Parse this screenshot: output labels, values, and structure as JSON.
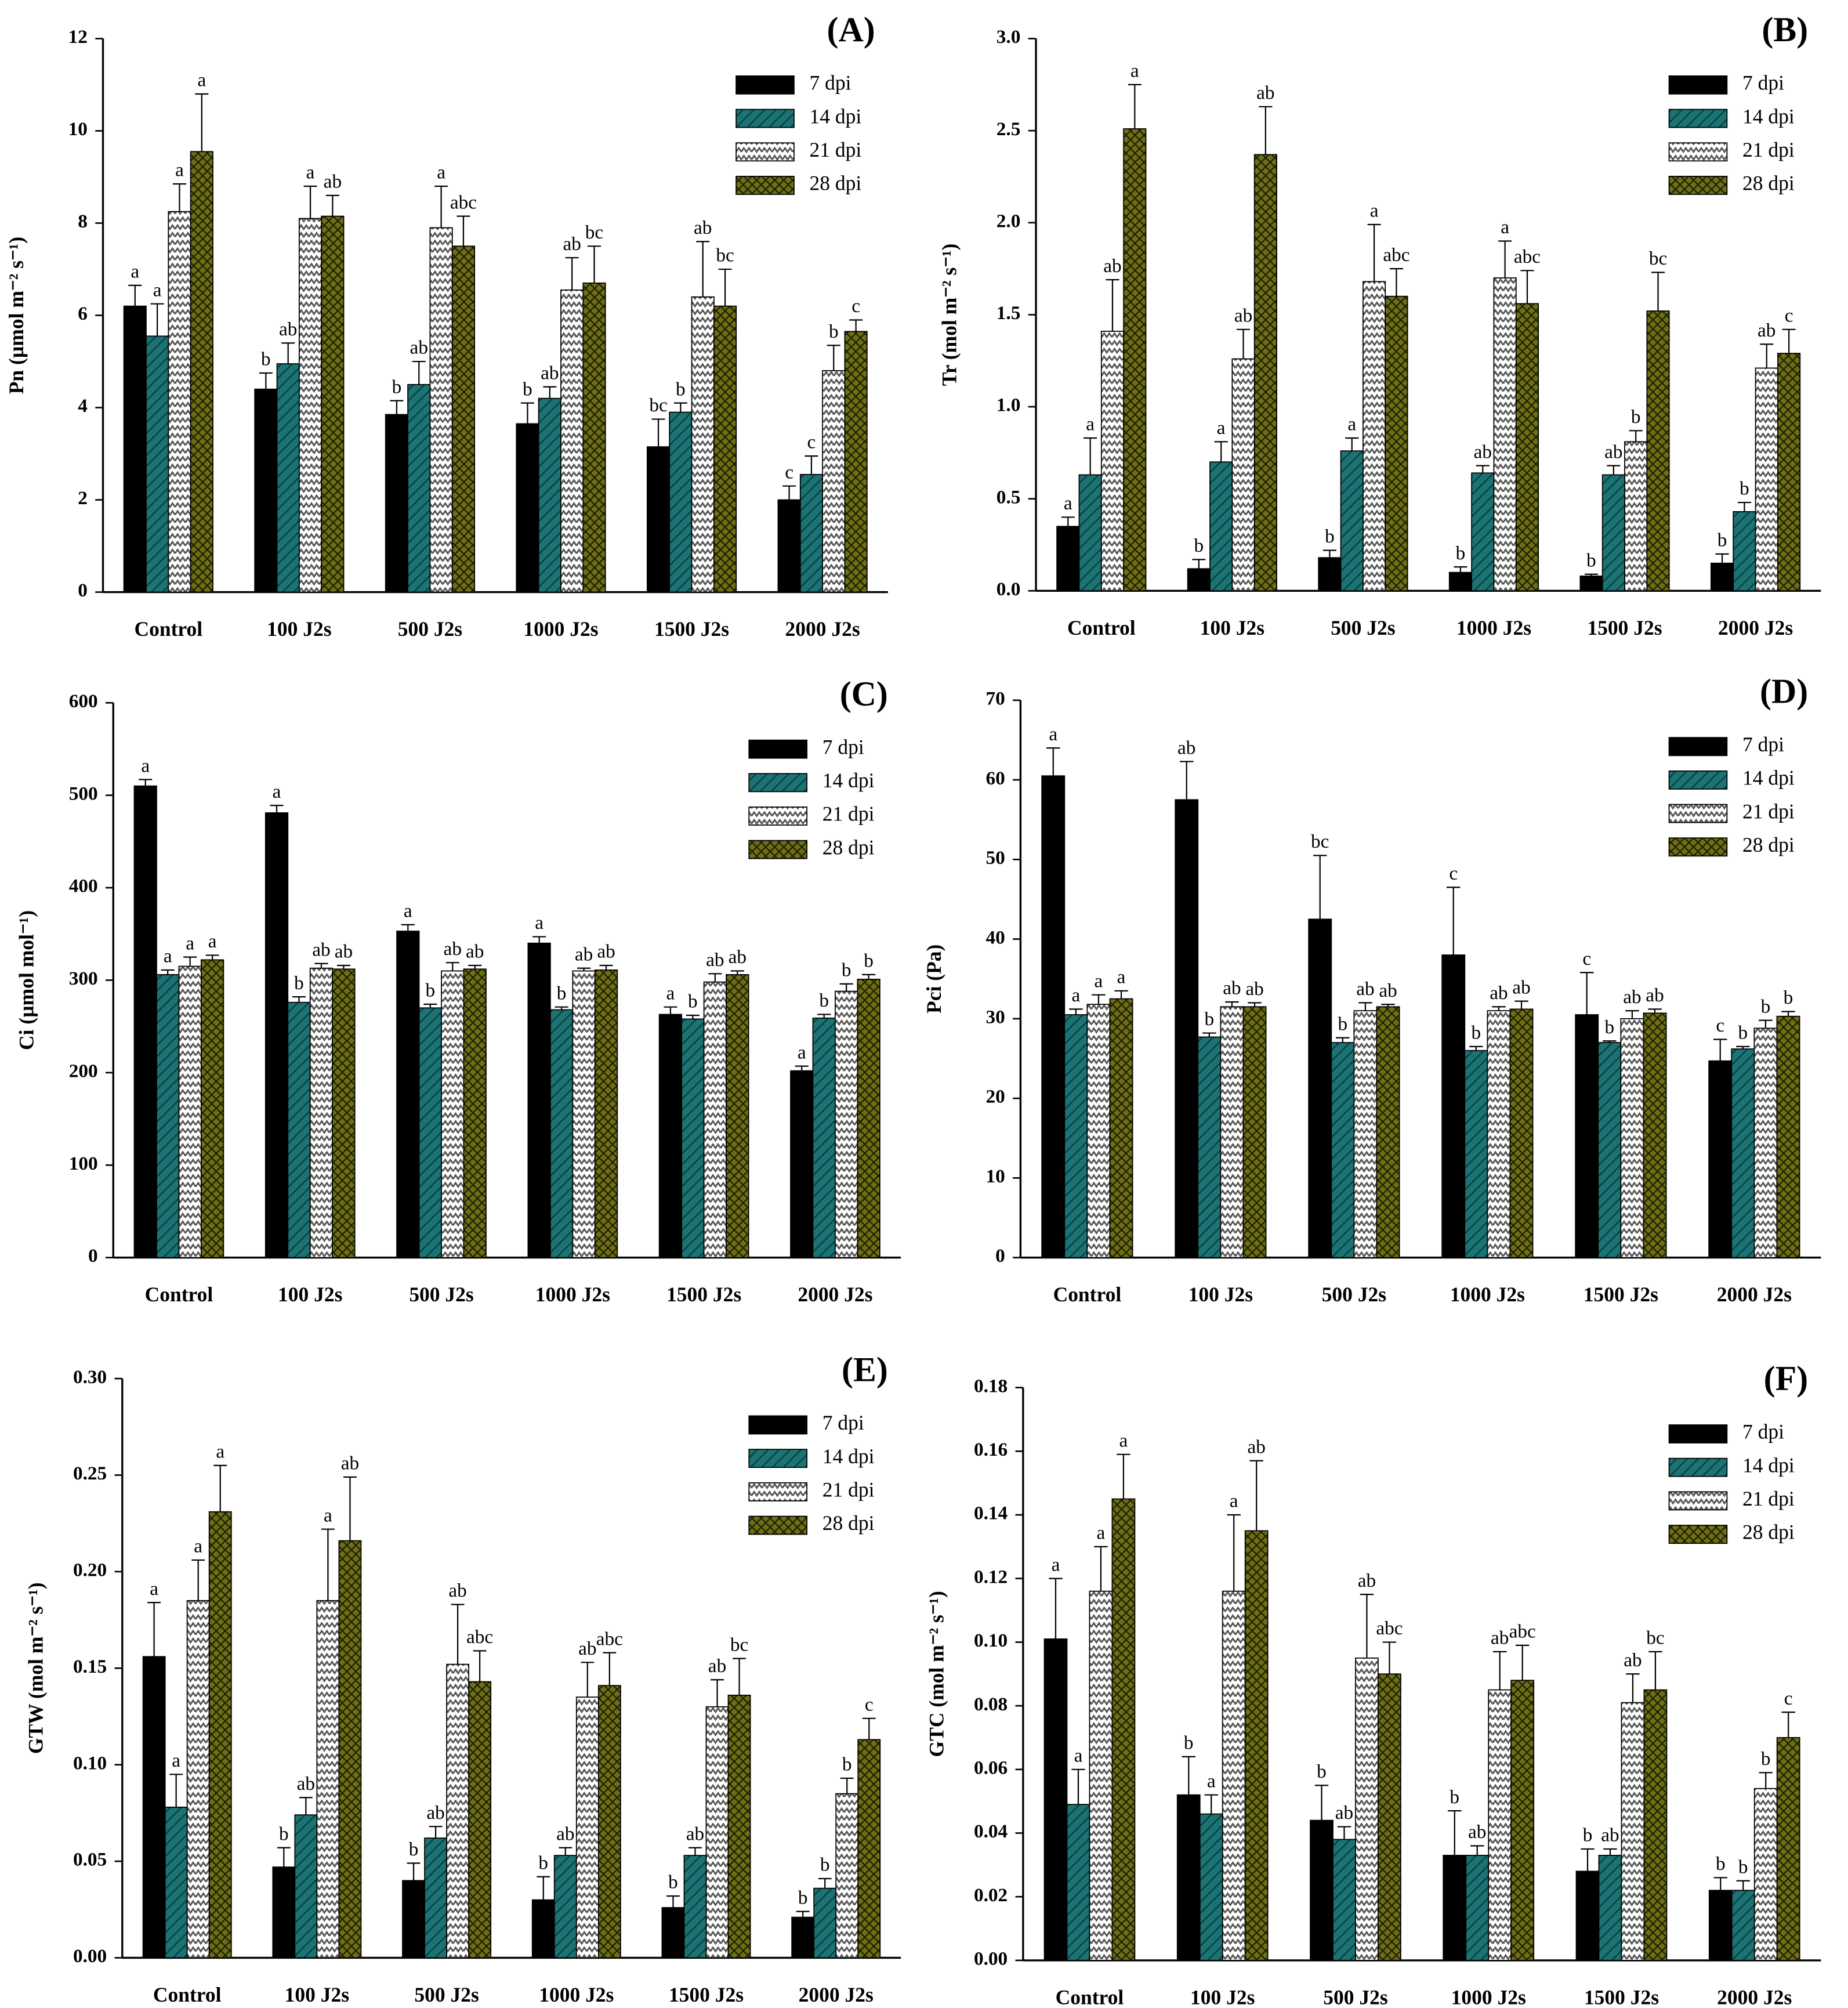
{
  "chart_data": [
    {
      "type": "bar",
      "panel": "(A)",
      "ylabel": "Pn (µmol m⁻² s⁻¹)",
      "categories": [
        "Control",
        "100 J2s",
        "500 J2s",
        "1000 J2s",
        "1500 J2s",
        "2000 J2s"
      ],
      "ylim": [
        0,
        12
      ],
      "yticks": [
        0,
        2,
        4,
        6,
        8,
        10,
        12
      ],
      "series": [
        {
          "name": "7 dpi",
          "color": "#000000",
          "hatch": "solid",
          "values": [
            6.2,
            4.4,
            3.85,
            3.65,
            3.15,
            2.0
          ],
          "errors": [
            0.45,
            0.35,
            0.3,
            0.45,
            0.6,
            0.3
          ],
          "letters": [
            "a",
            "b",
            "b",
            "b",
            "bc",
            "c"
          ]
        },
        {
          "name": "14 dpi",
          "color": "#1b6f6f",
          "hatch": "diagonal",
          "values": [
            5.55,
            4.95,
            4.5,
            4.2,
            3.9,
            2.55
          ],
          "errors": [
            0.7,
            0.45,
            0.5,
            0.25,
            0.2,
            0.4
          ],
          "letters": [
            "a",
            "ab",
            "ab",
            "ab",
            "b",
            "c"
          ]
        },
        {
          "name": "21 dpi",
          "color": "#ffffff",
          "hatch": "zigzag",
          "values": [
            8.25,
            8.1,
            7.9,
            6.55,
            6.4,
            4.8
          ],
          "errors": [
            0.6,
            0.7,
            0.9,
            0.7,
            1.2,
            0.55
          ],
          "letters": [
            "a",
            "a",
            "a",
            "ab",
            "ab",
            "b"
          ]
        },
        {
          "name": "28 dpi",
          "color": "#6e6e14",
          "hatch": "crosshatch",
          "values": [
            9.55,
            8.15,
            7.5,
            6.7,
            6.2,
            5.65
          ],
          "errors": [
            1.25,
            0.45,
            0.65,
            0.8,
            0.8,
            0.25
          ],
          "letters": [
            "a",
            "ab",
            "abc",
            "bc",
            "bc",
            "c"
          ]
        }
      ]
    },
    {
      "type": "bar",
      "panel": "(B)",
      "ylabel": "Tr (mol m⁻² s⁻¹)",
      "categories": [
        "Control",
        "100 J2s",
        "500 J2s",
        "1000 J2s",
        "1500 J2s",
        "2000 J2s"
      ],
      "ylim": [
        0,
        3
      ],
      "yticks": [
        {
          "value": 0,
          "label": "0.0"
        },
        0.5,
        {
          "value": 1,
          "label": "1.0"
        },
        1.5,
        {
          "value": 2,
          "label": "2.0"
        },
        2.5,
        {
          "value": 3,
          "label": "3.0"
        }
      ],
      "series": [
        {
          "name": "7 dpi",
          "color": "#000000",
          "hatch": "solid",
          "values": [
            0.35,
            0.12,
            0.18,
            0.1,
            0.08,
            0.15
          ],
          "errors": [
            0.05,
            0.05,
            0.04,
            0.03,
            0.01,
            0.05
          ],
          "letters": [
            "a",
            "b",
            "b",
            "b",
            "b",
            "b"
          ]
        },
        {
          "name": "14 dpi",
          "color": "#1b6f6f",
          "hatch": "diagonal",
          "values": [
            0.63,
            0.7,
            0.76,
            0.64,
            0.63,
            0.43
          ],
          "errors": [
            0.2,
            0.11,
            0.07,
            0.04,
            0.05,
            0.05
          ],
          "letters": [
            "a",
            "a",
            "a",
            "ab",
            "ab",
            "b"
          ]
        },
        {
          "name": "21 dpi",
          "color": "#ffffff",
          "hatch": "zigzag",
          "values": [
            1.41,
            1.26,
            1.68,
            1.7,
            0.81,
            1.21
          ],
          "errors": [
            0.28,
            0.16,
            0.31,
            0.2,
            0.06,
            0.13
          ],
          "letters": [
            "ab",
            "ab",
            "a",
            "a",
            "b",
            "ab"
          ]
        },
        {
          "name": "28 dpi",
          "color": "#6e6e14",
          "hatch": "crosshatch",
          "values": [
            2.51,
            2.37,
            1.6,
            1.56,
            1.52,
            1.29
          ],
          "errors": [
            0.24,
            0.26,
            0.15,
            0.18,
            0.21,
            0.13
          ],
          "letters": [
            "a",
            "ab",
            "abc",
            "abc",
            "bc",
            "c"
          ]
        }
      ]
    },
    {
      "type": "bar",
      "panel": "(C)",
      "ylabel": "Ci (µmol mol⁻¹)",
      "categories": [
        "Control",
        "100 J2s",
        "500 J2s",
        "1000 J2s",
        "1500 J2s",
        "2000 J2s"
      ],
      "ylim": [
        0,
        600
      ],
      "yticks": [
        0,
        100,
        200,
        300,
        400,
        500,
        600
      ],
      "series": [
        {
          "name": "7 dpi",
          "color": "#000000",
          "hatch": "solid",
          "values": [
            510,
            481,
            353,
            340,
            263,
            202
          ],
          "errors": [
            7,
            8,
            7,
            7,
            8,
            5
          ],
          "letters": [
            "a",
            "a",
            "a",
            "a",
            "a",
            "a"
          ]
        },
        {
          "name": "14 dpi",
          "color": "#1b6f6f",
          "hatch": "diagonal",
          "values": [
            306,
            276,
            270,
            268,
            258,
            259
          ],
          "errors": [
            5,
            6,
            4,
            3,
            4,
            4
          ],
          "letters": [
            "a",
            "b",
            "b",
            "b",
            "b",
            "b"
          ]
        },
        {
          "name": "21 dpi",
          "color": "#ffffff",
          "hatch": "zigzag",
          "values": [
            315,
            313,
            310,
            310,
            298,
            288
          ],
          "errors": [
            10,
            5,
            9,
            3,
            9,
            8
          ],
          "letters": [
            "a",
            "ab",
            "ab",
            "ab",
            "ab",
            "b"
          ]
        },
        {
          "name": "28 dpi",
          "color": "#6e6e14",
          "hatch": "crosshatch",
          "values": [
            322,
            312,
            312,
            311,
            306,
            301
          ],
          "errors": [
            5,
            4,
            4,
            5,
            4,
            5
          ],
          "letters": [
            "a",
            "ab",
            "ab",
            "ab",
            "ab",
            "b"
          ]
        }
      ]
    },
    {
      "type": "bar",
      "panel": "(D)",
      "ylabel": "Pci (Pa)",
      "categories": [
        "Control",
        "100 J2s",
        "500 J2s",
        "1000 J2s",
        "1500 J2s",
        "2000 J2s"
      ],
      "ylim": [
        0,
        70
      ],
      "yticks": [
        0,
        10,
        20,
        30,
        40,
        50,
        60,
        70
      ],
      "series": [
        {
          "name": "7 dpi",
          "color": "#000000",
          "hatch": "solid",
          "values": [
            60.5,
            57.5,
            42.5,
            38,
            30.5,
            24.7
          ],
          "errors": [
            3.5,
            4.8,
            8,
            8.5,
            5.3,
            2.7
          ],
          "letters": [
            "a",
            "ab",
            "bc",
            "c",
            "c",
            "c"
          ]
        },
        {
          "name": "14 dpi",
          "color": "#1b6f6f",
          "hatch": "diagonal",
          "values": [
            30.5,
            27.7,
            27,
            26,
            27,
            26.2
          ],
          "errors": [
            0.7,
            0.5,
            0.6,
            0.5,
            0.2,
            0.3
          ],
          "letters": [
            "a",
            "b",
            "b",
            "b",
            "b",
            "b"
          ]
        },
        {
          "name": "21 dpi",
          "color": "#ffffff",
          "hatch": "zigzag",
          "values": [
            31.8,
            31.5,
            31,
            31,
            30,
            28.8
          ],
          "errors": [
            1.2,
            0.6,
            1,
            0.5,
            1,
            1
          ],
          "letters": [
            "a",
            "ab",
            "ab",
            "ab",
            "ab",
            "b"
          ]
        },
        {
          "name": "28 dpi",
          "color": "#6e6e14",
          "hatch": "crosshatch",
          "values": [
            32.5,
            31.5,
            31.5,
            31.2,
            30.7,
            30.3
          ],
          "errors": [
            1,
            0.5,
            0.3,
            1,
            0.5,
            0.6
          ],
          "letters": [
            "a",
            "ab",
            "ab",
            "ab",
            "ab",
            "b"
          ]
        }
      ]
    },
    {
      "type": "bar",
      "panel": "(E)",
      "ylabel": "GTW (mol m⁻² s⁻¹)",
      "categories": [
        "Control",
        "100 J2s",
        "500 J2s",
        "1000 J2s",
        "1500 J2s",
        "2000 J2s"
      ],
      "ylim": [
        0,
        0.3
      ],
      "yticks": [
        {
          "value": 0,
          "label": "0.00"
        },
        0.05,
        {
          "value": 0.1,
          "label": "0.10"
        },
        0.15,
        {
          "value": 0.2,
          "label": "0.20"
        },
        0.25,
        {
          "value": 0.3,
          "label": "0.30"
        }
      ],
      "series": [
        {
          "name": "7 dpi",
          "color": "#000000",
          "hatch": "solid",
          "values": [
            0.156,
            0.047,
            0.04,
            0.03,
            0.026,
            0.021
          ],
          "errors": [
            0.028,
            0.01,
            0.009,
            0.012,
            0.006,
            0.003
          ],
          "letters": [
            "a",
            "b",
            "b",
            "b",
            "b",
            "b"
          ]
        },
        {
          "name": "14 dpi",
          "color": "#1b6f6f",
          "hatch": "diagonal",
          "values": [
            0.078,
            0.074,
            0.062,
            0.053,
            0.053,
            0.036
          ],
          "errors": [
            0.017,
            0.009,
            0.006,
            0.004,
            0.004,
            0.005
          ],
          "letters": [
            "a",
            "ab",
            "ab",
            "ab",
            "ab",
            "b"
          ]
        },
        {
          "name": "21 dpi",
          "color": "#ffffff",
          "hatch": "zigzag",
          "values": [
            0.185,
            0.185,
            0.152,
            0.135,
            0.13,
            0.085
          ],
          "errors": [
            0.021,
            0.037,
            0.031,
            0.018,
            0.014,
            0.008
          ],
          "letters": [
            "a",
            "a",
            "ab",
            "ab",
            "ab",
            "b"
          ]
        },
        {
          "name": "28 dpi",
          "color": "#6e6e14",
          "hatch": "crosshatch",
          "values": [
            0.231,
            0.216,
            0.143,
            0.141,
            0.136,
            0.113
          ],
          "errors": [
            0.024,
            0.033,
            0.016,
            0.017,
            0.019,
            0.011
          ],
          "letters": [
            "a",
            "ab",
            "abc",
            "abc",
            "bc",
            "c"
          ]
        }
      ]
    },
    {
      "type": "bar",
      "panel": "(F)",
      "ylabel": "GTC (mol m⁻² s⁻¹)",
      "categories": [
        "Control",
        "100 J2s",
        "500 J2s",
        "1000 J2s",
        "1500 J2s",
        "2000 J2s"
      ],
      "ylim": [
        0,
        0.18
      ],
      "yticks": [
        {
          "value": 0,
          "label": "0.00"
        },
        0.02,
        0.04,
        0.06,
        0.08,
        {
          "value": 0.1,
          "label": "0.10"
        },
        0.12,
        0.14,
        0.16,
        0.18
      ],
      "series": [
        {
          "name": "7 dpi",
          "color": "#000000",
          "hatch": "solid",
          "values": [
            0.101,
            0.052,
            0.044,
            0.033,
            0.028,
            0.022
          ],
          "errors": [
            0.019,
            0.012,
            0.011,
            0.014,
            0.007,
            0.004
          ],
          "letters": [
            "a",
            "b",
            "b",
            "b",
            "b",
            "b"
          ]
        },
        {
          "name": "14 dpi",
          "color": "#1b6f6f",
          "hatch": "diagonal",
          "values": [
            0.049,
            0.046,
            0.038,
            0.033,
            0.033,
            0.022
          ],
          "errors": [
            0.011,
            0.006,
            0.004,
            0.003,
            0.002,
            0.003
          ],
          "letters": [
            "a",
            "a",
            "ab",
            "ab",
            "ab",
            "b"
          ]
        },
        {
          "name": "21 dpi",
          "color": "#ffffff",
          "hatch": "zigzag",
          "values": [
            0.116,
            0.116,
            0.095,
            0.085,
            0.081,
            0.054
          ],
          "errors": [
            0.014,
            0.024,
            0.02,
            0.012,
            0.009,
            0.005
          ],
          "letters": [
            "a",
            "a",
            "ab",
            "ab",
            "ab",
            "b"
          ]
        },
        {
          "name": "28 dpi",
          "color": "#6e6e14",
          "hatch": "crosshatch",
          "values": [
            0.145,
            0.135,
            0.09,
            0.088,
            0.085,
            0.07
          ],
          "errors": [
            0.014,
            0.022,
            0.01,
            0.011,
            0.012,
            0.008
          ],
          "letters": [
            "a",
            "ab",
            "abc",
            "abc",
            "bc",
            "c"
          ]
        }
      ]
    }
  ]
}
